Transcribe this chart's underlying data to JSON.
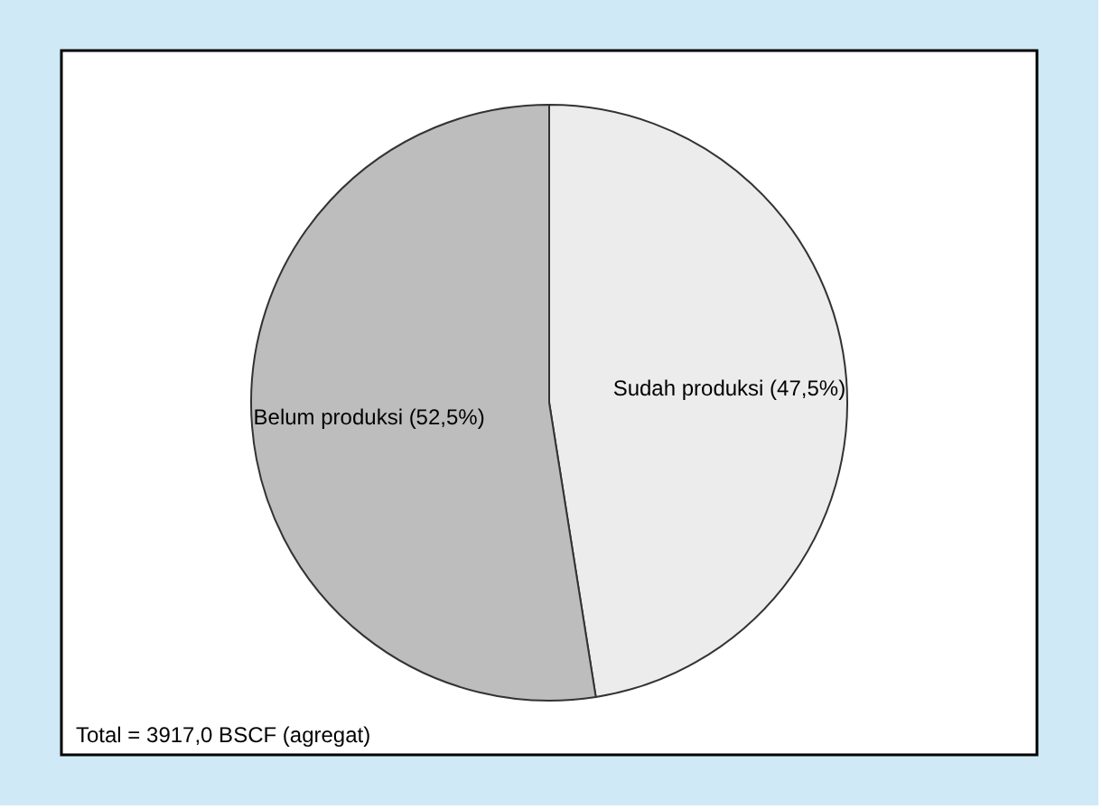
{
  "chart_data": {
    "type": "pie",
    "categories": [
      "Sudah produksi (47,5%)",
      "Belum produksi (52,5%)"
    ],
    "values": [
      47.5,
      52.5
    ],
    "colors": [
      "#ececec",
      "#bdbdbd"
    ],
    "annotations": [
      "Total = 3917,0 BSCF (agregat)"
    ],
    "legend": false
  }
}
